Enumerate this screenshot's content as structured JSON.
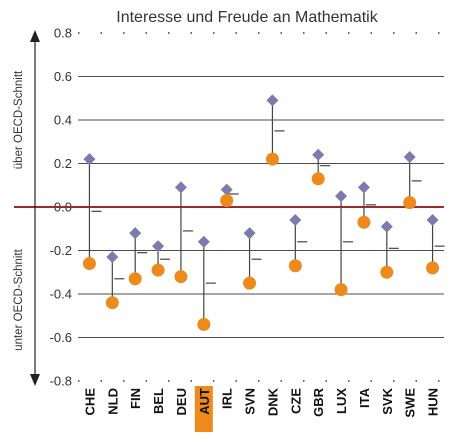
{
  "chart_data": {
    "type": "scatter",
    "title": "Interesse und Freude an Mathematik",
    "side_labels": {
      "upper": "über OECD-Schnitt",
      "lower": "unter OECD-Schnitt"
    },
    "ylim": [
      -0.8,
      0.8
    ],
    "yticks": [
      0.8,
      0.6,
      0.4,
      0.2,
      0.0,
      -0.2,
      -0.4,
      -0.6,
      -0.8
    ],
    "ytick_labels": [
      "0.8",
      "0.6",
      "0.4",
      "0.2",
      "0.0",
      "-0.2",
      "-0.4",
      "-0.6",
      "-0.8"
    ],
    "grid": true,
    "reference_line": 0.0,
    "highlight_category": "AUT",
    "categories": [
      "CHE",
      "NLD",
      "FIN",
      "BEL",
      "DEU",
      "AUT",
      "IRL",
      "SVN",
      "DNK",
      "CZE",
      "GBR",
      "LUX",
      "ITA",
      "SVK",
      "SWE",
      "HUN"
    ],
    "series": [
      {
        "values": [
          0.22,
          -0.23,
          -0.12,
          -0.18,
          0.09,
          -0.16,
          0.08,
          -0.12,
          0.49,
          -0.06,
          0.24,
          0.05,
          0.09,
          -0.09,
          0.23,
          -0.06
        ]
      },
      {
        "values": [
          -0.26,
          -0.44,
          -0.33,
          -0.29,
          -0.32,
          -0.54,
          0.03,
          -0.35,
          0.22,
          -0.27,
          0.13,
          -0.38,
          -0.07,
          -0.3,
          0.02,
          -0.28
        ]
      },
      {
        "values": [
          -0.02,
          -0.33,
          -0.21,
          -0.24,
          -0.11,
          -0.35,
          0.06,
          -0.24,
          0.35,
          -0.16,
          0.19,
          -0.16,
          0.01,
          -0.19,
          0.12,
          -0.18
        ]
      }
    ],
    "colors": {
      "diamond": "#7b7bb0",
      "circle": "#ee8a1c",
      "zero_line": "#9e2a2b",
      "grid": "#111111",
      "highlight_bg": "#ee8a1c",
      "stem": "#444444"
    }
  }
}
